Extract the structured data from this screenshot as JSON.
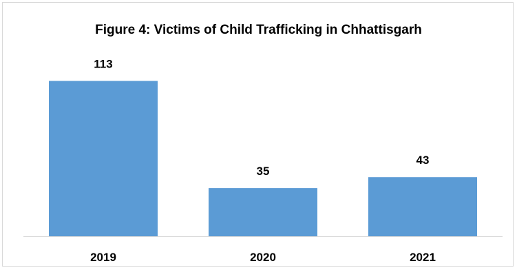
{
  "chart_data": {
    "type": "bar",
    "title": "Figure 4: Victims of Child Trafficking in Chhattisgarh",
    "categories": [
      "2019",
      "2020",
      "2021"
    ],
    "values": [
      113,
      35,
      43
    ],
    "xlabel": "",
    "ylabel": "",
    "ylim": [
      0,
      125
    ],
    "grid": false,
    "legend": "none",
    "bar_color": "#5b9bd5",
    "axis_color": "#d9d9d9",
    "data_labels": true
  }
}
